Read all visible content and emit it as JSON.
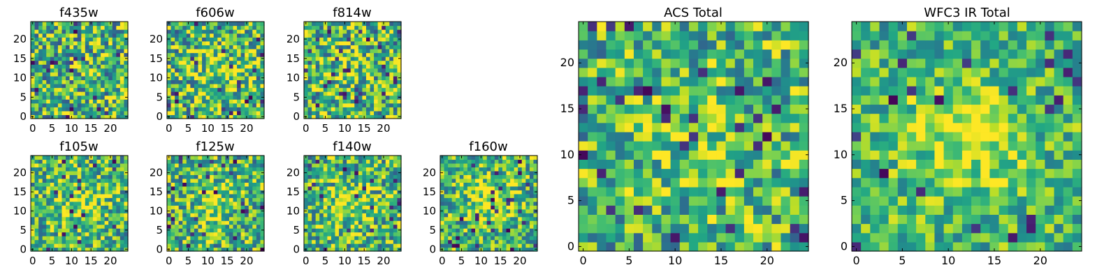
{
  "figure": {
    "panels": [
      {
        "id": "f435w",
        "title": "f435w",
        "size": 25,
        "xticks": [
          0,
          5,
          10,
          15,
          20
        ],
        "yticks": [
          0,
          5,
          10,
          15,
          20
        ],
        "seed": 11,
        "blob": 0.0,
        "noise": 0.8
      },
      {
        "id": "f606w",
        "title": "f606w",
        "size": 25,
        "xticks": [
          0,
          5,
          10,
          15,
          20
        ],
        "yticks": [
          0,
          5,
          10,
          15,
          20
        ],
        "seed": 23,
        "blob": 0.25,
        "noise": 0.8
      },
      {
        "id": "f814w",
        "title": "f814w",
        "size": 25,
        "xticks": [
          0,
          5,
          10,
          15,
          20
        ],
        "yticks": [
          0,
          5,
          10,
          15,
          20
        ],
        "seed": 37,
        "blob": 0.25,
        "noise": 0.8
      },
      {
        "id": "f105w",
        "title": "f105w",
        "size": 25,
        "xticks": [
          0,
          5,
          10,
          15,
          20
        ],
        "yticks": [
          0,
          5,
          10,
          15,
          20
        ],
        "seed": 41,
        "blob": 0.45,
        "noise": 0.7
      },
      {
        "id": "f125w",
        "title": "f125w",
        "size": 25,
        "xticks": [
          0,
          5,
          10,
          15,
          20
        ],
        "yticks": [
          0,
          5,
          10,
          15,
          20
        ],
        "seed": 53,
        "blob": 0.35,
        "noise": 0.75
      },
      {
        "id": "f140w",
        "title": "f140w",
        "size": 25,
        "xticks": [
          0,
          5,
          10,
          15,
          20
        ],
        "yticks": [
          0,
          5,
          10,
          15,
          20
        ],
        "seed": 67,
        "blob": 0.35,
        "noise": 0.75
      },
      {
        "id": "f160w",
        "title": "f160w",
        "size": 25,
        "xticks": [
          0,
          5,
          10,
          15,
          20
        ],
        "yticks": [
          0,
          5,
          10,
          15,
          20
        ],
        "seed": 79,
        "blob": 0.5,
        "noise": 0.7
      },
      {
        "id": "acs-total",
        "title": "ACS Total",
        "size": 25,
        "xticks": [
          0,
          5,
          10,
          15,
          20
        ],
        "yticks": [
          0,
          5,
          10,
          15,
          20
        ],
        "seed": 97,
        "blob": 0.3,
        "noise": 0.7
      },
      {
        "id": "wfc3-ir-total",
        "title": "WFC3 IR Total",
        "size": 25,
        "xticks": [
          0,
          5,
          10,
          15,
          20
        ],
        "yticks": [
          0,
          5,
          10,
          15,
          20
        ],
        "seed": 113,
        "blob": 0.55,
        "noise": 0.55
      }
    ]
  },
  "chart_data": {
    "type": "heatmap",
    "colormap": "viridis",
    "grid": false,
    "panels": [
      {
        "title": "f435w",
        "xlim": [
          0,
          24
        ],
        "ylim": [
          0,
          24
        ]
      },
      {
        "title": "f606w",
        "xlim": [
          0,
          24
        ],
        "ylim": [
          0,
          24
        ]
      },
      {
        "title": "f814w",
        "xlim": [
          0,
          24
        ],
        "ylim": [
          0,
          24
        ]
      },
      {
        "title": "f105w",
        "xlim": [
          0,
          24
        ],
        "ylim": [
          0,
          24
        ]
      },
      {
        "title": "f125w",
        "xlim": [
          0,
          24
        ],
        "ylim": [
          0,
          24
        ]
      },
      {
        "title": "f140w",
        "xlim": [
          0,
          24
        ],
        "ylim": [
          0,
          24
        ]
      },
      {
        "title": "f160w",
        "xlim": [
          0,
          24
        ],
        "ylim": [
          0,
          24
        ]
      },
      {
        "title": "ACS Total",
        "xlim": [
          0,
          24
        ],
        "ylim": [
          0,
          24
        ]
      },
      {
        "title": "WFC3 IR Total",
        "xlim": [
          0,
          24
        ],
        "ylim": [
          0,
          24
        ]
      }
    ]
  }
}
